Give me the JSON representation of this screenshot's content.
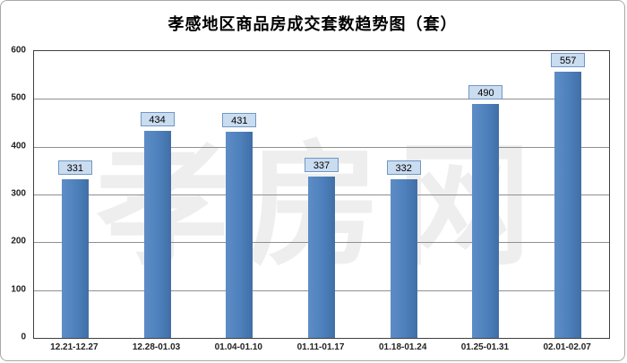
{
  "title": "孝感地区商品房成交套数趋势图（套）",
  "watermark": "孝房网",
  "chart_data": {
    "type": "bar",
    "categories": [
      "12.21-12.27",
      "12.28-01.03",
      "01.04-01.10",
      "01.11-01.17",
      "01.18-01.24",
      "01.25-01.31",
      "02.01-02.07"
    ],
    "values": [
      331,
      434,
      431,
      337,
      332,
      490,
      557
    ],
    "title": "孝感地区商品房成交套数趋势图（套）",
    "xlabel": "",
    "ylabel": "",
    "ylim": [
      0,
      600
    ],
    "ytick_interval": 100,
    "grid": true,
    "legend": false,
    "bar_color": "#4d80bc",
    "label_box_bg": "#cadcf0",
    "label_box_border": "#6f98c4"
  }
}
